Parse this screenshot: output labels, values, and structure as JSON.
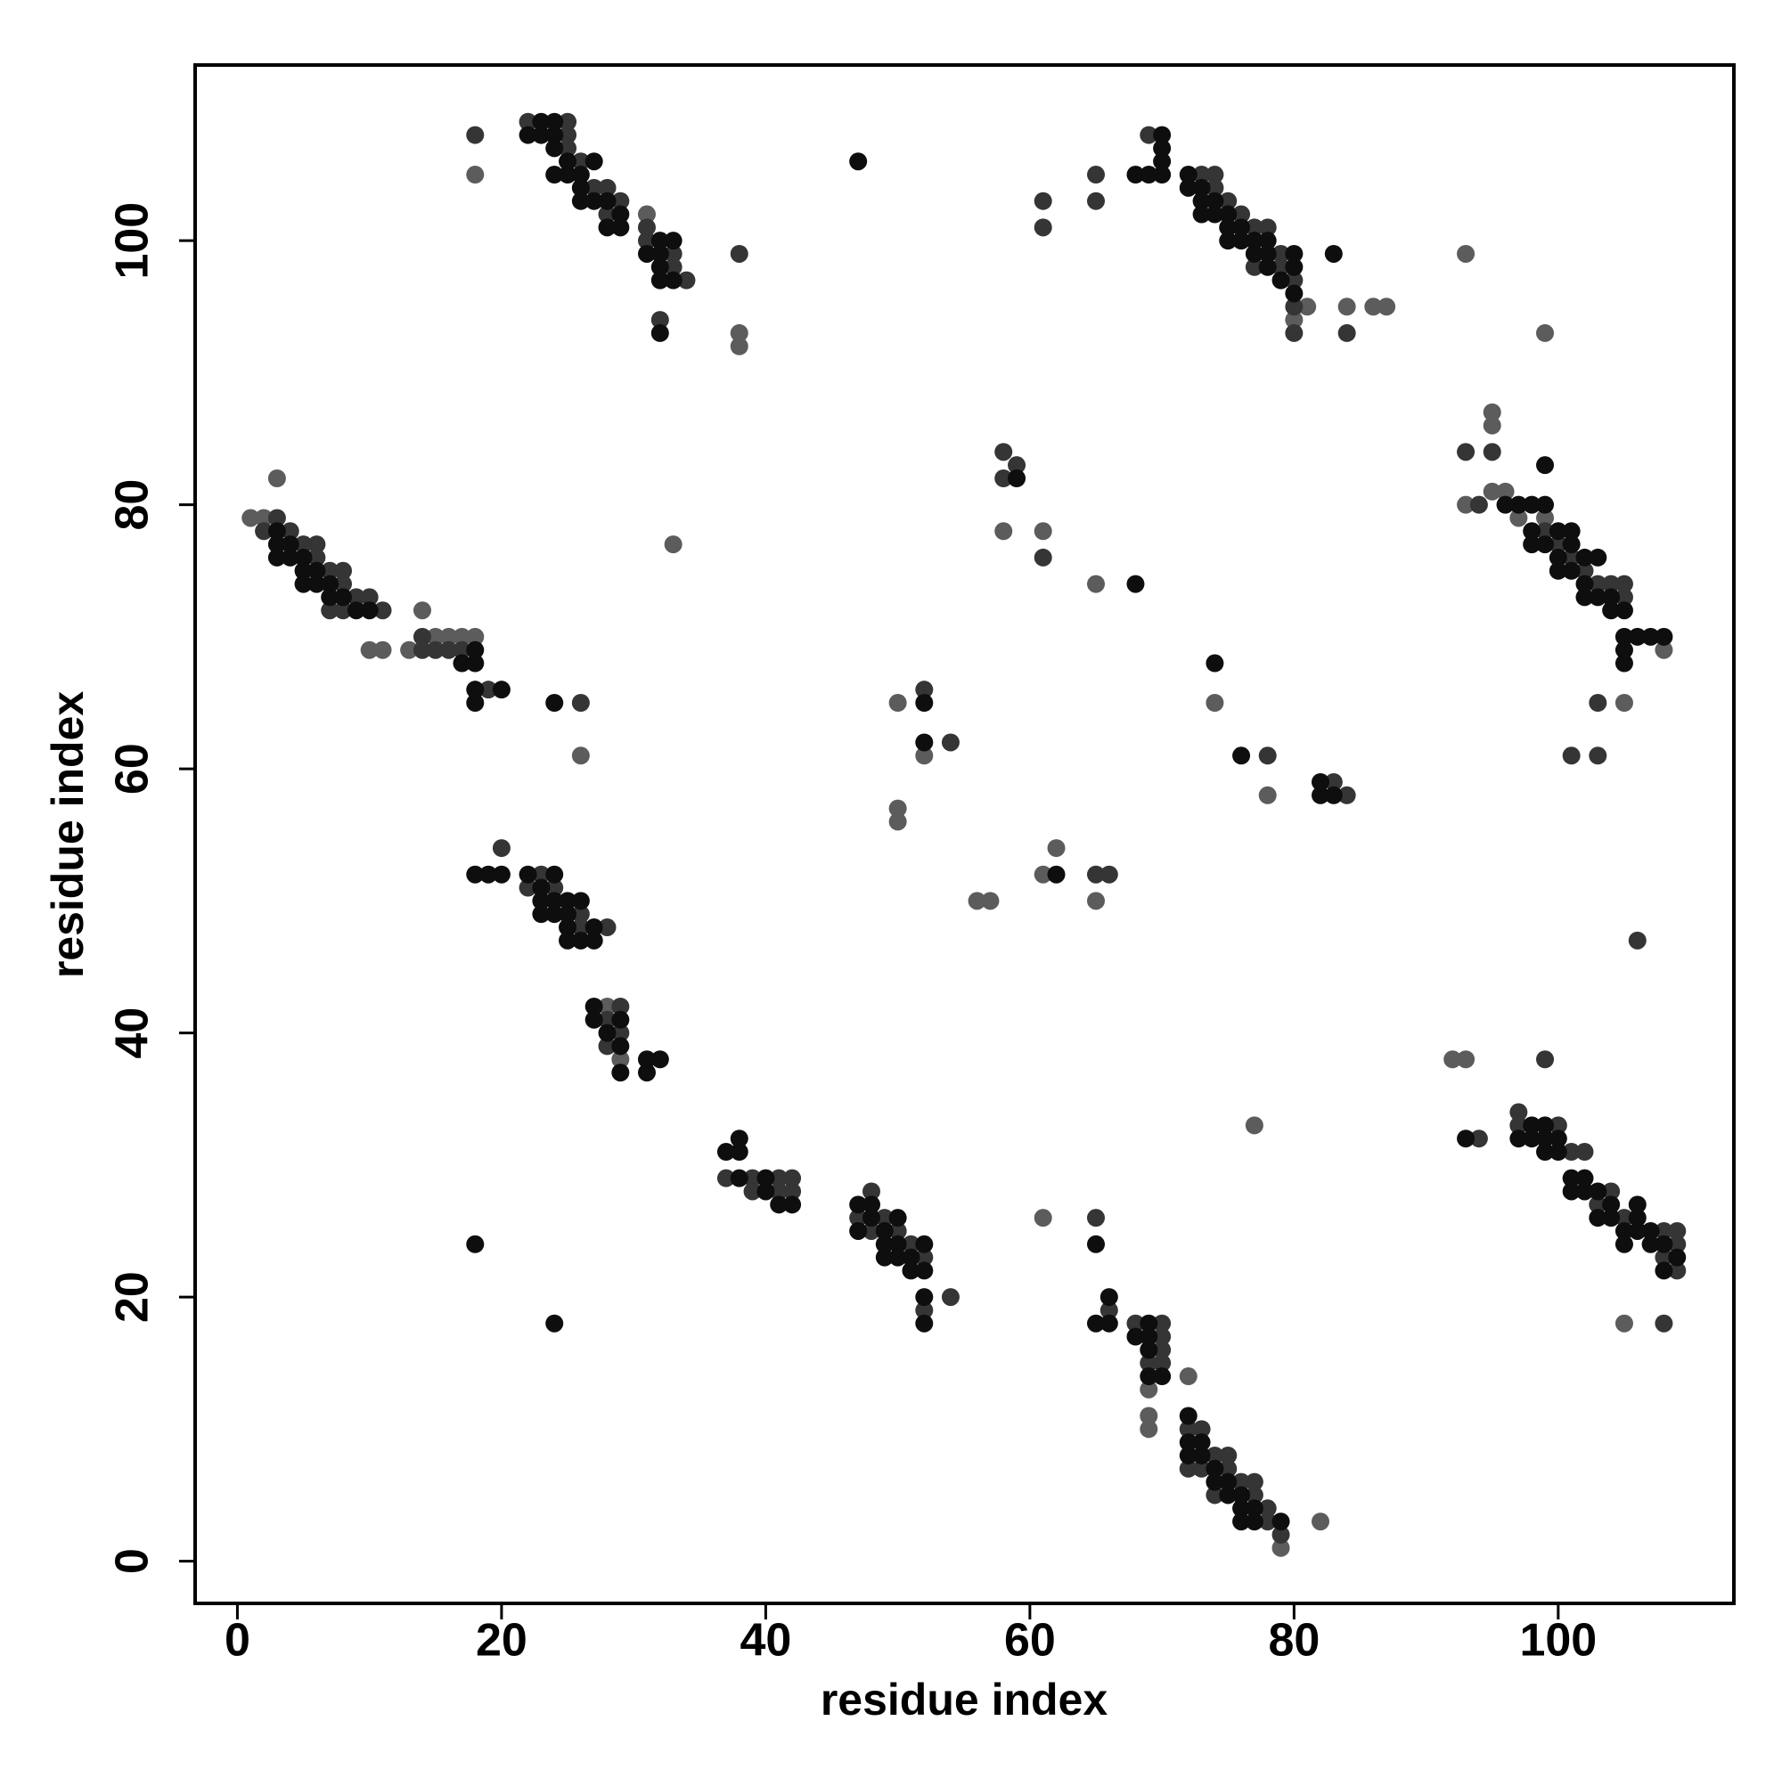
{
  "chart_data": {
    "type": "scatter",
    "x_label": "residue index",
    "y_label": "residue index",
    "xlim": [
      -3.2,
      113.3
    ],
    "ylim": [
      -3.2,
      113.3
    ],
    "xticks": [
      0,
      20,
      40,
      60,
      80,
      100
    ],
    "yticks": [
      0,
      20,
      40,
      60,
      80,
      100
    ],
    "grid": false,
    "series": [
      {
        "color": "#5c5c5c",
        "x": [
          18,
          3,
          1,
          10,
          11,
          13,
          14,
          26,
          33,
          38,
          38,
          93,
          99,
          58,
          61,
          65,
          50,
          52,
          50,
          50,
          56,
          57,
          61,
          65,
          62,
          74,
          78,
          92,
          93,
          77,
          61,
          69,
          69,
          72,
          82,
          79,
          105,
          69,
          31,
          80,
          81,
          84,
          86,
          87,
          95,
          95,
          93,
          95,
          96,
          97,
          99,
          108,
          105,
          28,
          29,
          2,
          15,
          16,
          17,
          18
        ],
        "values": [
          105,
          82,
          79,
          69,
          69,
          69,
          72,
          61,
          77,
          93,
          92,
          99,
          93,
          78,
          78,
          74,
          65,
          61,
          56,
          57,
          50,
          50,
          52,
          50,
          54,
          65,
          58,
          38,
          38,
          33,
          26,
          11,
          10,
          14,
          3,
          1,
          18,
          13,
          102,
          94,
          95,
          95,
          95,
          95,
          87,
          86,
          80,
          81,
          81,
          79,
          79,
          69,
          65,
          42,
          38,
          79,
          70,
          70,
          70,
          70
        ]
      },
      {
        "color": "#353535",
        "x": [
          18,
          22,
          25,
          25,
          25,
          26,
          27,
          28,
          29,
          28,
          31,
          31,
          33,
          33,
          34,
          32,
          38,
          61,
          61,
          65,
          65,
          69,
          73,
          74,
          74,
          75,
          76,
          77,
          78,
          79,
          77,
          79,
          80,
          80,
          80,
          84,
          2,
          3,
          4,
          5,
          6,
          6,
          7,
          8,
          8,
          9,
          10,
          7,
          8,
          11,
          14,
          14,
          15,
          16,
          17,
          19,
          26,
          58,
          59,
          58,
          61,
          52,
          54,
          66,
          65,
          78,
          83,
          84,
          93,
          95,
          94,
          99,
          100,
          101,
          102,
          103,
          104,
          105,
          105,
          103,
          101,
          103,
          106,
          99,
          20,
          23,
          22,
          24,
          26,
          26,
          28,
          28,
          29,
          29,
          28,
          37,
          39,
          41,
          42,
          39,
          41,
          42,
          48,
          47,
          49,
          48,
          50,
          51,
          52,
          52,
          54,
          65,
          66,
          68,
          70,
          70,
          70,
          69,
          70,
          72,
          73,
          74,
          75,
          72,
          73,
          75,
          76,
          77,
          74,
          77,
          78,
          78,
          79,
          94,
          97,
          97,
          100,
          101,
          102,
          104,
          103,
          105,
          108,
          109,
          109,
          108,
          109,
          108
        ],
        "values": [
          108,
          109,
          109,
          108,
          107,
          106,
          104,
          104,
          103,
          102,
          101,
          100,
          99,
          98,
          97,
          94,
          99,
          103,
          101,
          105,
          103,
          108,
          105,
          105,
          104,
          103,
          102,
          101,
          101,
          99,
          98,
          98,
          97,
          95,
          93,
          93,
          78,
          79,
          78,
          77,
          77,
          76,
          75,
          75,
          74,
          73,
          73,
          72,
          72,
          72,
          70,
          69,
          69,
          69,
          69,
          66,
          65,
          84,
          83,
          82,
          76,
          66,
          62,
          52,
          52,
          61,
          59,
          58,
          84,
          84,
          80,
          78,
          77,
          76,
          75,
          74,
          74,
          74,
          73,
          61,
          61,
          65,
          47,
          38,
          54,
          52,
          51,
          51,
          49,
          48,
          48,
          41,
          42,
          40,
          39,
          29,
          29,
          29,
          29,
          28,
          28,
          28,
          28,
          26,
          26,
          25,
          25,
          24,
          23,
          19,
          20,
          26,
          19,
          18,
          18,
          17,
          16,
          15,
          15,
          10,
          10,
          8,
          8,
          7,
          7,
          7,
          6,
          6,
          5,
          5,
          4,
          3,
          2,
          32,
          34,
          33,
          33,
          31,
          31,
          28,
          27,
          26,
          25,
          25,
          24,
          23,
          22,
          18
        ]
      },
      {
        "color": "#0e0e0e",
        "x": [
          22,
          23,
          23,
          24,
          24,
          24,
          24,
          25,
          25,
          27,
          26,
          26,
          26,
          27,
          28,
          28,
          29,
          29,
          31,
          32,
          32,
          33,
          32,
          32,
          33,
          32,
          47,
          68,
          69,
          70,
          70,
          70,
          70,
          72,
          72,
          73,
          73,
          74,
          73,
          74,
          75,
          75,
          76,
          75,
          76,
          77,
          78,
          77,
          78,
          80,
          78,
          80,
          79,
          80,
          83,
          3,
          3,
          4,
          3,
          4,
          5,
          5,
          6,
          5,
          6,
          7,
          7,
          8,
          9,
          10,
          18,
          17,
          18,
          18,
          20,
          18,
          24,
          59,
          52,
          52,
          62,
          68,
          74,
          76,
          82,
          82,
          83,
          96,
          97,
          98,
          99,
          98,
          98,
          99,
          101,
          100,
          101,
          100,
          100,
          101,
          102,
          103,
          102,
          102,
          103,
          104,
          104,
          105,
          105,
          106,
          107,
          108,
          105,
          105,
          99,
          18,
          19,
          20,
          22,
          24,
          23,
          23,
          24,
          25,
          23,
          24,
          25,
          25,
          27,
          25,
          26,
          27,
          26,
          27,
          27,
          29,
          28,
          29,
          29,
          31,
          32,
          31,
          37,
          38,
          38,
          38,
          40,
          40,
          41,
          42,
          47,
          48,
          48,
          50,
          47,
          49,
          49,
          50,
          52,
          49,
          50,
          51,
          51,
          52,
          52,
          52,
          18,
          24,
          65,
          66,
          65,
          66,
          69,
          68,
          69,
          69,
          69,
          70,
          72,
          72,
          73,
          72,
          73,
          74,
          74,
          75,
          75,
          76,
          76,
          77,
          76,
          77,
          79,
          93,
          97,
          98,
          99,
          100,
          98,
          99,
          99,
          100,
          101,
          102,
          101,
          102,
          103,
          104,
          103,
          104,
          106,
          106,
          105,
          106,
          107,
          105,
          107,
          108,
          109,
          108
        ],
        "values": [
          108,
          108,
          109,
          109,
          108,
          107,
          105,
          105,
          106,
          106,
          105,
          104,
          103,
          103,
          103,
          101,
          101,
          102,
          99,
          99,
          100,
          100,
          98,
          97,
          97,
          93,
          106,
          105,
          105,
          105,
          108,
          107,
          106,
          105,
          104,
          104,
          103,
          103,
          102,
          102,
          102,
          101,
          101,
          100,
          100,
          100,
          100,
          99,
          99,
          99,
          98,
          98,
          97,
          96,
          99,
          78,
          77,
          77,
          76,
          76,
          76,
          75,
          75,
          74,
          74,
          74,
          73,
          73,
          72,
          72,
          69,
          68,
          68,
          66,
          66,
          65,
          65,
          82,
          65,
          62,
          52,
          74,
          68,
          61,
          58,
          59,
          58,
          80,
          80,
          80,
          80,
          78,
          77,
          77,
          78,
          78,
          77,
          76,
          75,
          75,
          76,
          76,
          74,
          73,
          73,
          73,
          72,
          72,
          70,
          70,
          70,
          70,
          69,
          68,
          83,
          52,
          52,
          52,
          52,
          52,
          51,
          50,
          50,
          50,
          49,
          49,
          49,
          48,
          48,
          47,
          47,
          47,
          50,
          42,
          41,
          41,
          40,
          39,
          37,
          38,
          38,
          37,
          31,
          31,
          32,
          29,
          29,
          28,
          27,
          27,
          27,
          27,
          26,
          26,
          25,
          25,
          24,
          24,
          24,
          23,
          23,
          23,
          22,
          22,
          20,
          18,
          24,
          18,
          24,
          20,
          18,
          18,
          18,
          17,
          17,
          16,
          14,
          14,
          11,
          9,
          9,
          8,
          8,
          7,
          6,
          6,
          5,
          5,
          4,
          4,
          3,
          3,
          3,
          32,
          32,
          32,
          32,
          32,
          33,
          33,
          31,
          31,
          29,
          29,
          28,
          28,
          28,
          27,
          26,
          26,
          26,
          27,
          25,
          25,
          25,
          24,
          24,
          24,
          23,
          22
        ]
      }
    ]
  }
}
